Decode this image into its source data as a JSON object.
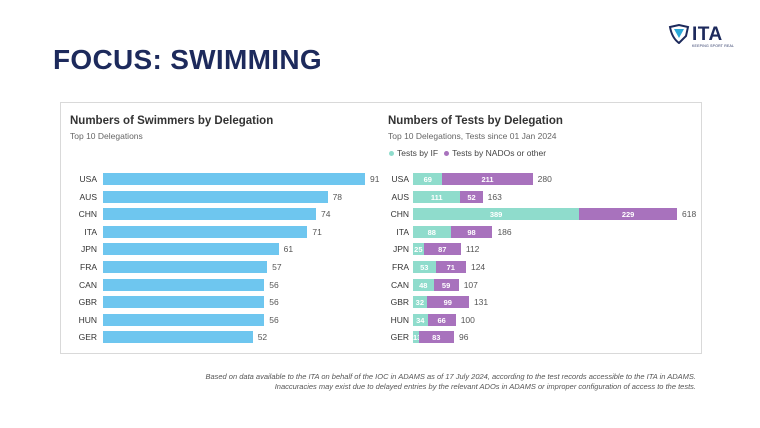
{
  "logo": {
    "text": "ITA",
    "tagline": "KEEPING SPORT REAL"
  },
  "page_title": "FOCUS: SWIMMING",
  "colors": {
    "swimmers": "#6ec6ef",
    "if": "#8fdccc",
    "nado": "#a872bd",
    "title": "#1d2a5c"
  },
  "chart_data": [
    {
      "type": "bar",
      "orientation": "horizontal",
      "title": "Numbers of Swimmers by Delegation",
      "subtitle": "Top 10 Delegations",
      "categories": [
        "USA",
        "AUS",
        "CHN",
        "ITA",
        "JPN",
        "FRA",
        "CAN",
        "GBR",
        "HUN",
        "GER"
      ],
      "values": [
        91,
        78,
        74,
        71,
        61,
        57,
        56,
        56,
        56,
        52
      ],
      "xlim": [
        0,
        91
      ]
    },
    {
      "type": "bar",
      "orientation": "horizontal",
      "stacked": true,
      "title": "Numbers of Tests by Delegation",
      "subtitle": "Top 10 Delegations, Tests since 01 Jan 2024",
      "categories": [
        "USA",
        "AUS",
        "CHN",
        "ITA",
        "JPN",
        "FRA",
        "CAN",
        "GBR",
        "HUN",
        "GER"
      ],
      "series": [
        {
          "name": "Tests by IF",
          "values": [
            69,
            111,
            389,
            88,
            25,
            53,
            48,
            32,
            34,
            13
          ]
        },
        {
          "name": "Tests by NADOs or other",
          "values": [
            211,
            52,
            229,
            98,
            87,
            71,
            59,
            99,
            66,
            83
          ]
        }
      ],
      "totals": [
        280,
        163,
        618,
        186,
        112,
        124,
        107,
        131,
        100,
        96
      ],
      "xlim": [
        0,
        618
      ]
    }
  ],
  "footnote": {
    "line1": "Based on data available to the ITA on behalf of the IOC in ADAMS as of 17 July 2024, according to the test records accessible to the ITA in ADAMS.",
    "line2": "Inaccuracies may exist due to delayed entries by the relevant ADOs in ADAMS or improper configuration of access to the tests."
  }
}
